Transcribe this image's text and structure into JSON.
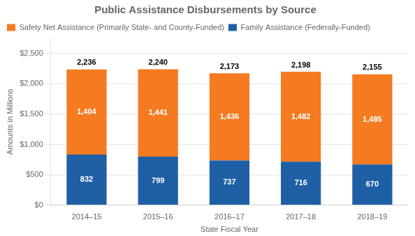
{
  "chart_data": {
    "type": "bar",
    "title": "Public Assistance Disbursements by Source",
    "xlabel": "State Fiscal Year",
    "ylabel": "Amounts in Millions",
    "categories": [
      "2014–15",
      "2015–16",
      "2016–17",
      "2017–18",
      "2018–19"
    ],
    "series": [
      {
        "name": "Family Assistance (Federally-Funded)",
        "color": "#1F5FA6",
        "values": [
          832,
          799,
          737,
          716,
          670
        ]
      },
      {
        "name": "Safety Net Assistance (Primarily State- and County-Funded)",
        "color": "#F47B20",
        "values": [
          1404,
          1441,
          1436,
          1482,
          1485
        ],
        "value_labels": [
          "1,404",
          "1,441",
          "1,436",
          "1,482",
          "1,485"
        ]
      }
    ],
    "totals": [
      {
        "value": 2236,
        "label": "2,236"
      },
      {
        "value": 2240,
        "label": "2,240"
      },
      {
        "value": 2173,
        "label": "2,173"
      },
      {
        "value": 2198,
        "label": "2,198"
      },
      {
        "value": 2155,
        "label": "2,155"
      }
    ],
    "stacked": true,
    "data_labels": true,
    "ylim": [
      0,
      2750
    ],
    "yticks": [
      {
        "value": 0,
        "label": "$0"
      },
      {
        "value": 500,
        "label": "$500"
      },
      {
        "value": 1000,
        "label": "$1,000"
      },
      {
        "value": 1500,
        "label": "$1,500"
      },
      {
        "value": 2000,
        "label": "$2,000"
      },
      {
        "value": 2500,
        "label": "$2,500"
      }
    ],
    "grid": true,
    "legend": "upper left"
  }
}
